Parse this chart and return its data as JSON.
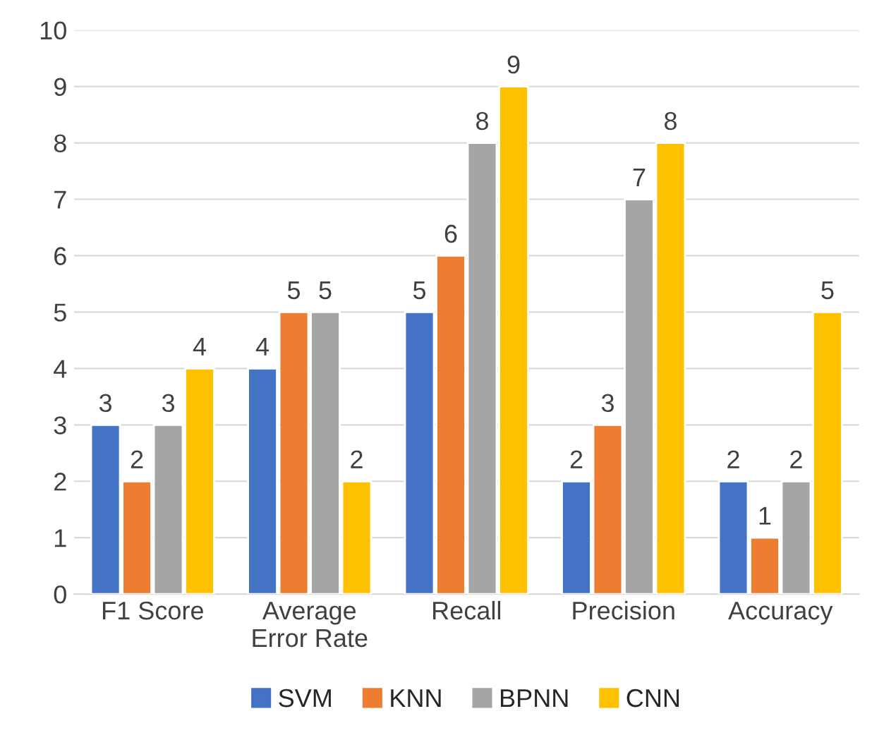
{
  "chart_data": {
    "type": "bar",
    "categories": [
      "F1 Score",
      "Average\nError Rate",
      "Recall",
      "Precision",
      "Accuracy"
    ],
    "series": [
      {
        "name": "SVM",
        "color": "#4472c4",
        "values": [
          3,
          4,
          5,
          2,
          2
        ]
      },
      {
        "name": "KNN",
        "color": "#ed7d31",
        "values": [
          2,
          5,
          6,
          3,
          1
        ]
      },
      {
        "name": "BPNN",
        "color": "#a5a5a5",
        "values": [
          3,
          5,
          8,
          7,
          2
        ]
      },
      {
        "name": "CNN",
        "color": "#ffc000",
        "values": [
          4,
          2,
          9,
          8,
          5
        ]
      }
    ],
    "ylim": [
      0,
      10
    ],
    "yticks": [
      0,
      1,
      2,
      3,
      4,
      5,
      6,
      7,
      8,
      9,
      10
    ],
    "grid": "y",
    "legend": "bottom",
    "data_labels": true
  }
}
